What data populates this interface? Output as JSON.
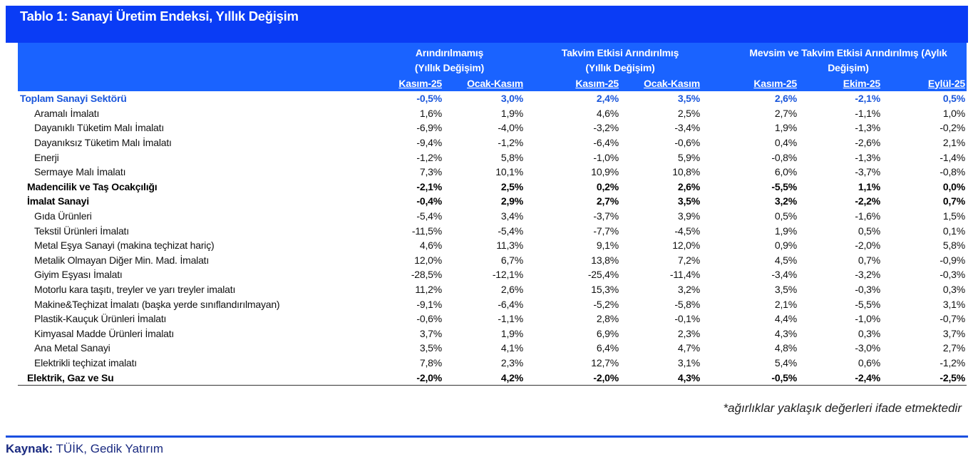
{
  "title": "Tablo 1: Sanayi Üretim Endeksi, Yıllık Değişim",
  "header": {
    "groups": [
      {
        "line1": "Arındırılmamış",
        "line2": "(Yıllık Değişim)"
      },
      {
        "line1": "Takvim Etkisi Arındırılmış",
        "line2": "(Yıllık Değişim)"
      },
      {
        "line1": "Mevsim ve Takvim Etkisi Arındırılmış (Aylık",
        "line2": "Değişim)"
      }
    ],
    "columns": [
      "Kasım-25",
      "Ocak-Kasım",
      "Kasım-25",
      "Ocak-Kasım",
      "Kasım-25",
      "Ekim-25",
      "Eylül-25"
    ]
  },
  "rows": [
    {
      "label": "Toplam Sanayi Sektörü",
      "style": "total",
      "values": [
        "-0,5%",
        "3,0%",
        "2,4%",
        "3,5%",
        "2,6%",
        "-2,1%",
        "0,5%"
      ]
    },
    {
      "label": "Aramalı İmalatı",
      "style": "norm",
      "values": [
        "1,6%",
        "1,9%",
        "4,6%",
        "2,5%",
        "2,7%",
        "-1,1%",
        "1,0%"
      ]
    },
    {
      "label": "Dayanıklı Tüketim Malı İmalatı",
      "style": "norm",
      "values": [
        "-6,9%",
        "-4,0%",
        "-3,2%",
        "-3,4%",
        "1,9%",
        "-1,3%",
        "-0,2%"
      ]
    },
    {
      "label": "Dayanıksız Tüketim Malı İmalatı",
      "style": "norm",
      "values": [
        "-9,4%",
        "-1,2%",
        "-6,4%",
        "-0,6%",
        "0,4%",
        "-2,6%",
        "2,1%"
      ]
    },
    {
      "label": "Enerji",
      "style": "norm",
      "values": [
        "-1,2%",
        "5,8%",
        "-1,0%",
        "5,9%",
        "-0,8%",
        "-1,3%",
        "-1,4%"
      ]
    },
    {
      "label": "Sermaye Malı İmalatı",
      "style": "norm",
      "values": [
        "7,3%",
        "10,1%",
        "10,9%",
        "10,8%",
        "6,0%",
        "-3,7%",
        "-0,8%"
      ]
    },
    {
      "label": "Madencilik ve Taş Ocakçılığı",
      "style": "bold",
      "values": [
        "-2,1%",
        "2,5%",
        "0,2%",
        "2,6%",
        "-5,5%",
        "1,1%",
        "0,0%"
      ]
    },
    {
      "label": "İmalat Sanayi",
      "style": "bold",
      "values": [
        "-0,4%",
        "2,9%",
        "2,7%",
        "3,5%",
        "3,2%",
        "-2,2%",
        "0,7%"
      ]
    },
    {
      "label": "Gıda Ürünleri",
      "style": "norm",
      "values": [
        "-5,4%",
        "3,4%",
        "-3,7%",
        "3,9%",
        "0,5%",
        "-1,6%",
        "1,5%"
      ]
    },
    {
      "label": "Tekstil Ürünleri İmalatı",
      "style": "norm",
      "values": [
        "-11,5%",
        "-5,4%",
        "-7,7%",
        "-4,5%",
        "1,9%",
        "0,5%",
        "0,1%"
      ]
    },
    {
      "label": "Metal Eşya Sanayi (makina teçhizat hariç)",
      "style": "norm",
      "values": [
        "4,6%",
        "11,3%",
        "9,1%",
        "12,0%",
        "0,9%",
        "-2,0%",
        "5,8%"
      ]
    },
    {
      "label": "Metalik Olmayan Diğer Min. Mad. İmalatı",
      "style": "norm",
      "values": [
        "12,0%",
        "6,7%",
        "13,8%",
        "7,2%",
        "4,5%",
        "0,7%",
        "-0,9%"
      ]
    },
    {
      "label": "Giyim Eşyası İmalatı",
      "style": "norm",
      "values": [
        "-28,5%",
        "-12,1%",
        "-25,4%",
        "-11,4%",
        "-3,4%",
        "-3,2%",
        "-0,3%"
      ]
    },
    {
      "label": "Motorlu kara taşıtı, treyler ve yarı treyler imalatı",
      "style": "norm",
      "values": [
        "11,2%",
        "2,6%",
        "15,3%",
        "3,2%",
        "3,5%",
        "-0,3%",
        "0,3%"
      ]
    },
    {
      "label": "Makine&Teçhizat İmalatı (başka yerde sınıflandırılmayan)",
      "style": "norm",
      "values": [
        "-9,1%",
        "-6,4%",
        "-5,2%",
        "-5,8%",
        "2,1%",
        "-5,5%",
        "3,1%"
      ]
    },
    {
      "label": "Plastik-Kauçuk Ürünleri İmalatı",
      "style": "norm",
      "values": [
        "-0,6%",
        "-1,1%",
        "2,8%",
        "-0,1%",
        "4,4%",
        "-1,0%",
        "-0,7%"
      ]
    },
    {
      "label": "Kimyasal Madde Ürünleri İmalatı",
      "style": "norm",
      "values": [
        "3,7%",
        "1,9%",
        "6,9%",
        "2,3%",
        "4,3%",
        "0,3%",
        "3,7%"
      ]
    },
    {
      "label": "Ana Metal Sanayi",
      "style": "norm",
      "values": [
        "3,5%",
        "4,1%",
        "6,4%",
        "4,7%",
        "4,8%",
        "-3,0%",
        "2,7%"
      ]
    },
    {
      "label": "Elektrikli teçhizat imalatı",
      "style": "norm",
      "values": [
        "7,8%",
        "2,3%",
        "12,7%",
        "3,1%",
        "5,4%",
        "0,6%",
        "-1,2%"
      ]
    },
    {
      "label": "Elektrik, Gaz ve Su",
      "style": "bold",
      "values": [
        "-2,0%",
        "4,2%",
        "-2,0%",
        "4,3%",
        "-0,5%",
        "-2,4%",
        "-2,5%"
      ]
    }
  ],
  "note": "*ağırlıklar yaklaşık değerleri ifade etmektedir",
  "source": {
    "label": "Kaynak:",
    "text": " TÜİK, Gedik Yatırım"
  },
  "colors": {
    "title_bg": "#0a3cf5",
    "header_bg": "#1a63ff",
    "total_text": "#1a56db",
    "source_text": "#1a2a80"
  }
}
